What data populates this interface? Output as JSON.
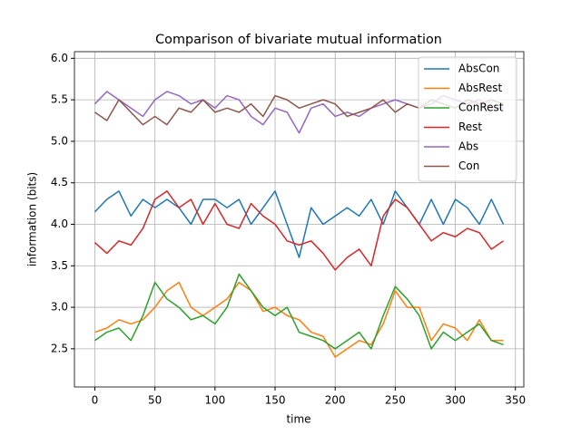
{
  "chart_data": {
    "type": "line",
    "title": "Comparison of bivariate mutual information",
    "x_label": "time",
    "y_label": "information (bits)",
    "x": [
      0,
      10,
      20,
      30,
      40,
      50,
      60,
      70,
      80,
      90,
      100,
      110,
      120,
      130,
      140,
      150,
      160,
      170,
      180,
      190,
      200,
      210,
      220,
      230,
      240,
      250,
      260,
      270,
      280,
      290,
      300,
      310,
      320,
      330,
      340
    ],
    "series": [
      {
        "name": "AbsCon",
        "color": "#1f77b4",
        "values": [
          4.15,
          4.3,
          4.4,
          4.1,
          4.3,
          4.2,
          4.3,
          4.2,
          4.0,
          4.3,
          4.3,
          4.2,
          4.3,
          4.0,
          4.2,
          4.4,
          4.0,
          3.6,
          4.2,
          4.0,
          4.1,
          4.2,
          4.1,
          4.3,
          4.0,
          4.4,
          4.2,
          4.0,
          4.3,
          4.0,
          4.3,
          4.2,
          4.0,
          4.3,
          4.0
        ]
      },
      {
        "name": "AbsRest",
        "color": "#ff7f0e",
        "values": [
          2.7,
          2.75,
          2.85,
          2.8,
          2.85,
          3.0,
          3.2,
          3.3,
          3.0,
          2.9,
          3.0,
          3.1,
          3.3,
          3.2,
          2.95,
          3.0,
          2.9,
          2.85,
          2.7,
          2.65,
          2.4,
          2.5,
          2.6,
          2.55,
          2.8,
          3.2,
          3.0,
          3.0,
          2.6,
          2.8,
          2.75,
          2.6,
          2.85,
          2.6,
          2.6
        ]
      },
      {
        "name": "ConRest",
        "color": "#2ca02c",
        "values": [
          2.6,
          2.7,
          2.75,
          2.6,
          2.9,
          3.3,
          3.1,
          3.0,
          2.85,
          2.9,
          2.8,
          3.0,
          3.4,
          3.2,
          3.0,
          2.9,
          3.0,
          2.7,
          2.65,
          2.6,
          2.5,
          2.6,
          2.7,
          2.5,
          2.9,
          3.25,
          3.1,
          2.9,
          2.5,
          2.7,
          2.6,
          2.7,
          2.8,
          2.6,
          2.55
        ]
      },
      {
        "name": "Rest",
        "color": "#d62728",
        "values": [
          3.78,
          3.65,
          3.8,
          3.75,
          3.95,
          4.3,
          4.4,
          4.2,
          4.3,
          4.0,
          4.25,
          4.0,
          3.95,
          4.25,
          4.1,
          4.0,
          3.8,
          3.75,
          3.8,
          3.65,
          3.45,
          3.6,
          3.7,
          3.5,
          4.1,
          4.3,
          4.2,
          4.0,
          3.8,
          3.9,
          3.85,
          3.95,
          3.9,
          3.7,
          3.8
        ]
      },
      {
        "name": "Abs",
        "color": "#9467bd",
        "values": [
          5.45,
          5.6,
          5.5,
          5.4,
          5.3,
          5.5,
          5.6,
          5.55,
          5.45,
          5.5,
          5.4,
          5.55,
          5.5,
          5.3,
          5.2,
          5.4,
          5.35,
          5.1,
          5.4,
          5.45,
          5.3,
          5.35,
          5.3,
          5.4,
          5.45,
          5.5,
          5.45,
          5.4,
          5.45,
          5.55,
          5.5,
          5.45,
          5.5,
          5.4,
          5.4
        ]
      },
      {
        "name": "Con",
        "color": "#8c564b",
        "values": [
          5.35,
          5.25,
          5.5,
          5.35,
          5.2,
          5.3,
          5.2,
          5.4,
          5.35,
          5.5,
          5.35,
          5.4,
          5.35,
          5.45,
          5.3,
          5.55,
          5.5,
          5.4,
          5.45,
          5.5,
          5.45,
          5.3,
          5.35,
          5.4,
          5.5,
          5.35,
          5.45,
          5.4,
          5.5,
          5.45,
          5.4,
          5.5,
          5.45,
          5.5,
          5.45
        ]
      }
    ],
    "xlim": [
      -17,
      357
    ],
    "ylim": [
      2.04,
      6.08
    ],
    "xticks": [
      0,
      50,
      100,
      150,
      200,
      250,
      300,
      350
    ],
    "yticks": [
      2.5,
      {
        "value": 3,
        "label": "3.0"
      },
      3.5,
      {
        "value": 4,
        "label": "4.0"
      },
      4.5,
      {
        "value": 5,
        "label": "5.0"
      },
      5.5,
      {
        "value": 6,
        "label": "6.0"
      }
    ],
    "grid": true,
    "legend": "upper right"
  }
}
